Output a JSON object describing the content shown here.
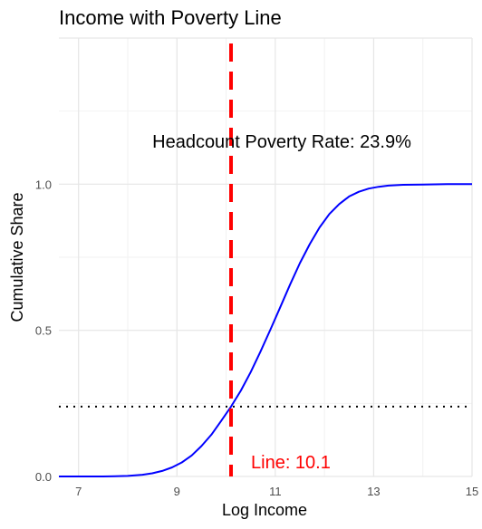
{
  "chart_data": {
    "type": "line",
    "title": "Income with Poverty Line",
    "xlabel": "Log Income",
    "ylabel": "Cumulative Share",
    "xlim": [
      6.6,
      15.0
    ],
    "ylim": [
      0.0,
      1.5
    ],
    "x_ticks": [
      7,
      9,
      11,
      13,
      15
    ],
    "x_tick_labels": [
      "7",
      "9",
      "11",
      "13",
      "15"
    ],
    "y_ticks": [
      0.0,
      0.5,
      1.0
    ],
    "y_tick_labels": [
      "0.0",
      "0.5",
      "1.0"
    ],
    "grid": true,
    "series": [
      {
        "color": "#0000ff",
        "x": [
          6.6,
          7.0,
          7.5,
          8.0,
          8.3,
          8.5,
          8.7,
          8.9,
          9.1,
          9.3,
          9.5,
          9.7,
          9.9,
          10.1,
          10.3,
          10.5,
          10.7,
          10.9,
          11.1,
          11.3,
          11.5,
          11.7,
          11.9,
          12.1,
          12.3,
          12.5,
          12.7,
          12.9,
          13.1,
          13.3,
          13.6,
          14.0,
          14.5,
          15.0
        ],
        "y": [
          0.0,
          0.0,
          0.0,
          0.002,
          0.006,
          0.011,
          0.019,
          0.031,
          0.048,
          0.072,
          0.104,
          0.143,
          0.19,
          0.239,
          0.294,
          0.357,
          0.428,
          0.502,
          0.579,
          0.656,
          0.73,
          0.795,
          0.852,
          0.898,
          0.932,
          0.958,
          0.974,
          0.985,
          0.991,
          0.995,
          0.998,
          0.999,
          1.0,
          1.0
        ]
      }
    ],
    "poverty_line": {
      "x": 10.1,
      "color": "#ff0000",
      "label": "Line: 10.1"
    },
    "poverty_rate_line": {
      "y": 0.239,
      "color": "#000000"
    },
    "annotation": "Headcount Poverty Rate: 23.9%"
  }
}
